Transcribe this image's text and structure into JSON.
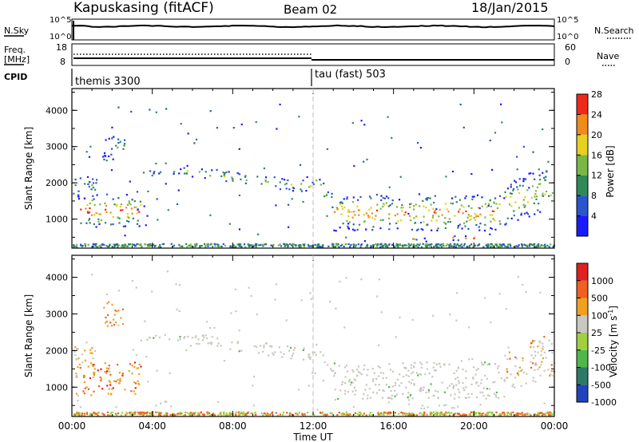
{
  "header": {
    "radar": "Kapuskasing (fitACF)",
    "beam": "Beam 02",
    "date": "18/Jan/2015"
  },
  "left_labels": {
    "nsky": "N.Sky",
    "freq_top": "Freq.",
    "freq_unit": "[MHz]",
    "cpid": "CPID"
  },
  "right_labels": {
    "nsearch": "N.Search",
    "nave": "Nave"
  },
  "noise_panel": {
    "left_ticks": [
      "10^5",
      "10^0"
    ],
    "right_ticks": [
      "10^5",
      "10^0"
    ]
  },
  "freq_panel": {
    "left_ticks": [
      "18",
      "8"
    ],
    "right_ticks": [
      "60",
      "0"
    ]
  },
  "cpid_panel": {
    "mode1": "themis 3300",
    "mode2": "tau (fast) 503"
  },
  "chart_data": [
    {
      "type": "heatmap",
      "ylabel": "Slant Range [km]",
      "xlabel": "Time UT",
      "x_ticks": [
        "00:00",
        "04:00",
        "08:00",
        "12:00",
        "16:00",
        "20:00",
        "00:00"
      ],
      "y_ticks": [
        1000,
        2000,
        3000,
        4000
      ],
      "ylim": [
        200,
        4600
      ],
      "colorbar": {
        "label": "Power [dB]",
        "ticks": [
          "4",
          "8",
          "12",
          "16",
          "20",
          "24",
          "28"
        ],
        "colors": [
          "#1a1aff",
          "#2a55cc",
          "#2e8a58",
          "#7ab845",
          "#e6d020",
          "#f08a1a",
          "#ee2a1a"
        ]
      }
    },
    {
      "type": "heatmap",
      "ylabel": "Slant Range [km]",
      "xlabel": "Time UT",
      "x_ticks": [
        "00:00",
        "04:00",
        "08:00",
        "12:00",
        "16:00",
        "20:00",
        "00:00"
      ],
      "y_ticks": [
        1000,
        2000,
        3000,
        4000
      ],
      "ylim": [
        200,
        4600
      ],
      "colorbar": {
        "label": "Velocity [m s^-1]",
        "ticks": [
          "1000",
          "500",
          "100",
          "25",
          "-25",
          "-100",
          "-500",
          "-1000"
        ],
        "colors": [
          "#2244bb",
          "#2e7a68",
          "#50b84a",
          "#a0d040",
          "#c8c8c0",
          "#f0a020",
          "#f06020",
          "#e02020"
        ]
      }
    }
  ]
}
